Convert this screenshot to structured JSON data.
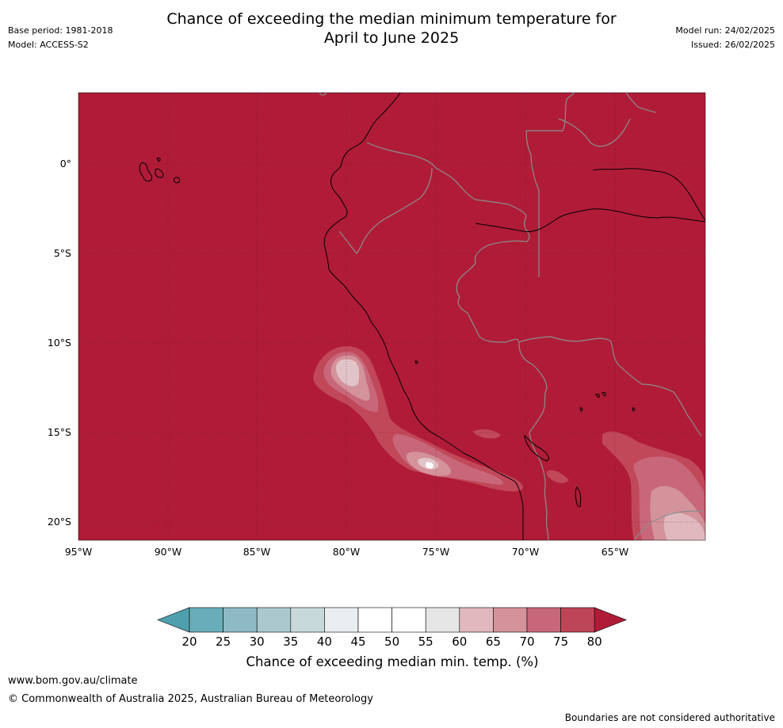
{
  "title": {
    "line1": "Chance of exceeding the median minimum temperature for",
    "line2": "April to June 2025"
  },
  "meta": {
    "base_period": "Base period: 1981-2018",
    "model": "Model: ACCESS-S2",
    "model_run": "Model run: 24/02/2025",
    "issued": "Issued: 26/02/2025"
  },
  "map": {
    "background_color": "#b01c37",
    "latitude_labels": [
      "0°",
      "5°S",
      "10°S",
      "15°S",
      "20°S"
    ],
    "longitude_labels": [
      "95°W",
      "90°W",
      "85°W",
      "80°W",
      "75°W",
      "70°W",
      "65°W"
    ]
  },
  "colorbar": {
    "ticks": [
      "20",
      "25",
      "30",
      "35",
      "40",
      "45",
      "50",
      "55",
      "60",
      "65",
      "70",
      "75",
      "80"
    ],
    "colors": [
      "#4fa0ae",
      "#6aadba",
      "#8ebac4",
      "#aac8cd",
      "#c8d9dc",
      "#e9eff1",
      "#ffffff",
      "#ffffff",
      "#e6e6e6",
      "#e0b8be",
      "#d4929a",
      "#c8677a",
      "#bd4557",
      "#b01c37"
    ],
    "label": "Chance of exceeding median min. temp. (%)"
  },
  "footer": {
    "website": "www.bom.gov.au/climate",
    "copyright": "© Commonwealth of Australia 2025, Australian Bureau of Meteorology",
    "disclaimer": "Boundaries are not considered authoritative"
  }
}
